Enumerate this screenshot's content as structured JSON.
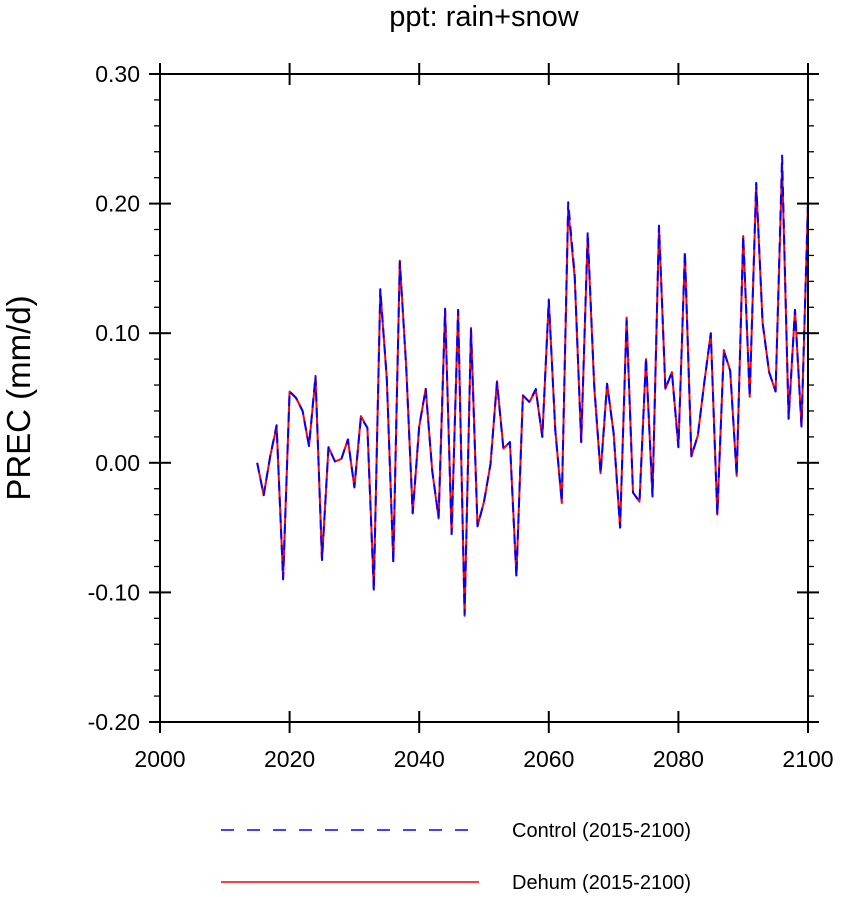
{
  "chart_data": {
    "type": "line",
    "title": "ppt: rain+snow",
    "xlabel": "",
    "ylabel": "PREC  (mm/d)",
    "xlim": [
      2000,
      2100
    ],
    "ylim": [
      -0.2,
      0.3
    ],
    "xticks": [
      2000,
      2020,
      2040,
      2060,
      2080,
      2100
    ],
    "yticks": [
      -0.2,
      -0.1,
      0.0,
      0.1,
      0.2,
      0.3
    ],
    "xtick_labels": [
      "2000",
      "2020",
      "2040",
      "2060",
      "2080",
      "2100"
    ],
    "ytick_labels": [
      "-0.20",
      "-0.10",
      "0.00",
      "0.10",
      "0.20",
      "0.30"
    ],
    "grid": false,
    "legend_position": "bottom",
    "x": [
      2015,
      2016,
      2017,
      2018,
      2019,
      2020,
      2021,
      2022,
      2023,
      2024,
      2025,
      2026,
      2027,
      2028,
      2029,
      2030,
      2031,
      2032,
      2033,
      2034,
      2035,
      2036,
      2037,
      2038,
      2039,
      2040,
      2041,
      2042,
      2043,
      2044,
      2045,
      2046,
      2047,
      2048,
      2049,
      2050,
      2051,
      2052,
      2053,
      2054,
      2055,
      2056,
      2057,
      2058,
      2059,
      2060,
      2061,
      2062,
      2063,
      2064,
      2065,
      2066,
      2067,
      2068,
      2069,
      2070,
      2071,
      2072,
      2073,
      2074,
      2075,
      2076,
      2077,
      2078,
      2079,
      2080,
      2081,
      2082,
      2083,
      2084,
      2085,
      2086,
      2087,
      2088,
      2089,
      2090,
      2091,
      2092,
      2093,
      2094,
      2095,
      2096,
      2097,
      2098,
      2099,
      2100
    ],
    "series": [
      {
        "name": "Control (2015-2100)",
        "color": "#0000ff",
        "style": "dashed",
        "values": [
          0.0,
          -0.025,
          0.005,
          0.029,
          -0.09,
          0.055,
          0.05,
          0.04,
          0.013,
          0.067,
          -0.075,
          0.012,
          0.001,
          0.003,
          0.018,
          -0.019,
          0.035,
          0.027,
          -0.099,
          0.134,
          0.065,
          -0.077,
          0.155,
          0.074,
          -0.039,
          0.028,
          0.057,
          -0.006,
          -0.042,
          0.119,
          -0.055,
          0.118,
          -0.117,
          0.103,
          -0.049,
          -0.03,
          -0.001,
          0.062,
          0.011,
          0.016,
          -0.088,
          0.052,
          0.047,
          0.057,
          0.02,
          0.126,
          0.025,
          -0.03,
          0.201,
          0.145,
          0.016,
          0.178,
          0.06,
          -0.008,
          0.061,
          0.023,
          -0.05,
          0.11,
          -0.023,
          -0.03,
          0.081,
          -0.026,
          0.183,
          0.057,
          0.07,
          0.012,
          0.163,
          0.005,
          0.021,
          0.062,
          0.1,
          -0.04,
          0.086,
          0.071,
          -0.01,
          0.175,
          0.051,
          0.216,
          0.108,
          0.07,
          0.055,
          0.237,
          0.034,
          0.118,
          0.028,
          0.202
        ]
      },
      {
        "name": "Dehum (2015-2100)",
        "color": "#ff0000",
        "style": "solid",
        "values": [
          0.0,
          -0.025,
          0.005,
          0.028,
          -0.089,
          0.055,
          0.05,
          0.04,
          0.013,
          0.066,
          -0.075,
          0.012,
          0.001,
          0.003,
          0.018,
          -0.019,
          0.036,
          0.027,
          -0.097,
          0.133,
          0.065,
          -0.076,
          0.156,
          0.074,
          -0.039,
          0.028,
          0.057,
          -0.006,
          -0.043,
          0.118,
          -0.055,
          0.118,
          -0.118,
          0.104,
          -0.049,
          -0.03,
          -0.001,
          0.063,
          0.011,
          0.016,
          -0.087,
          0.052,
          0.047,
          0.056,
          0.02,
          0.125,
          0.025,
          -0.031,
          0.196,
          0.143,
          0.016,
          0.175,
          0.059,
          -0.008,
          0.061,
          0.023,
          -0.05,
          0.112,
          -0.023,
          -0.03,
          0.08,
          -0.026,
          0.182,
          0.057,
          0.07,
          0.012,
          0.161,
          0.005,
          0.021,
          0.062,
          0.1,
          -0.04,
          0.087,
          0.071,
          -0.01,
          0.175,
          0.051,
          0.215,
          0.108,
          0.07,
          0.055,
          0.23,
          0.034,
          0.118,
          0.028,
          0.2
        ]
      }
    ]
  }
}
